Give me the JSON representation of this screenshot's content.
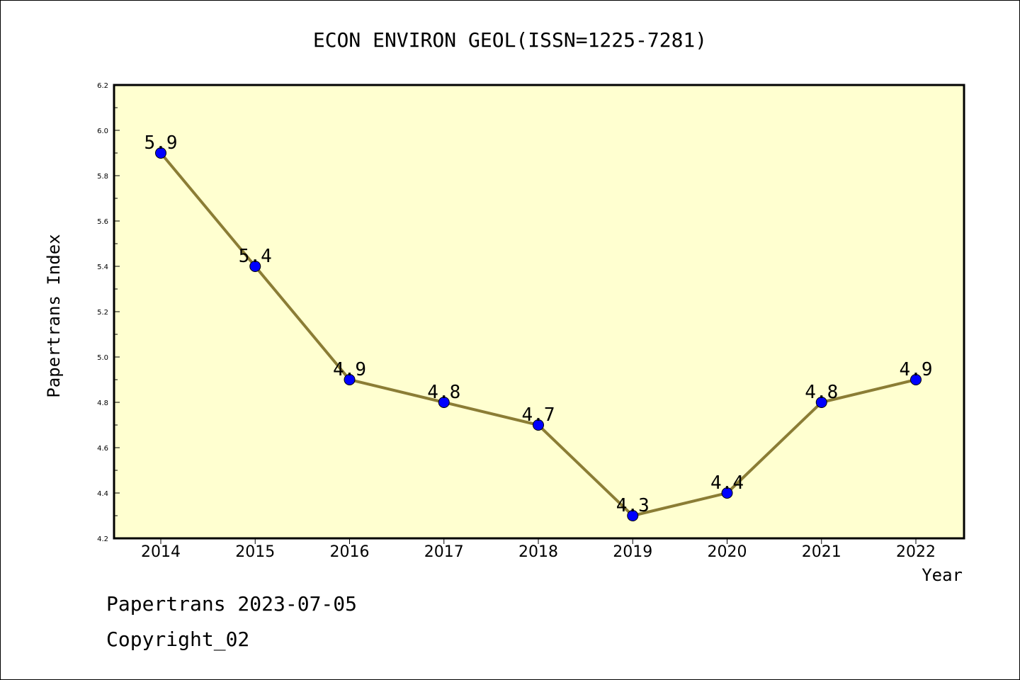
{
  "chart_data": {
    "type": "line",
    "title": "ECON ENVIRON GEOL(ISSN=1225-7281)",
    "xlabel": "Year",
    "ylabel": "Papertrans Index",
    "categories": [
      "2014",
      "2015",
      "2016",
      "2017",
      "2018",
      "2019",
      "2020",
      "2021",
      "2022"
    ],
    "values": [
      5.9,
      5.4,
      4.9,
      4.8,
      4.7,
      4.3,
      4.4,
      4.8,
      4.9
    ],
    "data_labels": [
      "5.9",
      "5.4",
      "4.9",
      "4.8",
      "4.7",
      "4.3",
      "4.4",
      "4.8",
      "4.9"
    ],
    "ylim": [
      4.2,
      6.2
    ],
    "yticks": [
      "4.2",
      "4.4",
      "4.6",
      "4.8",
      "5.0",
      "5.2",
      "5.4",
      "5.6",
      "5.8",
      "6.0",
      "6.2"
    ],
    "grid": false,
    "colors": {
      "plot_background": "#ffffd0",
      "line": "#8b7d35",
      "marker": "#0000ff"
    }
  },
  "footer": {
    "line1": "Papertrans 2023-07-05",
    "line2": "Copyright_02"
  }
}
